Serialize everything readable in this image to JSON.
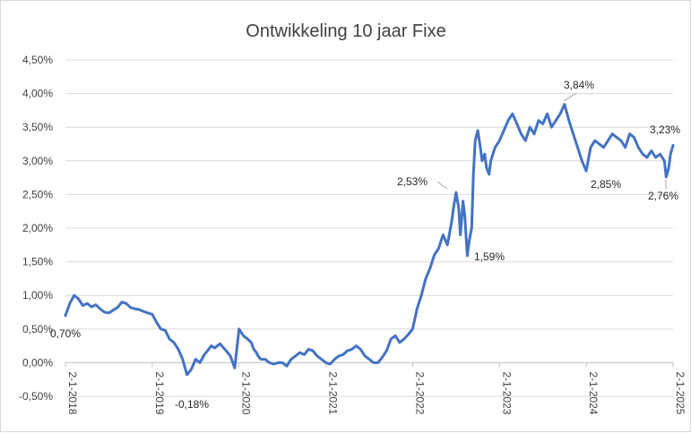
{
  "chart_data": {
    "type": "line",
    "title": "Ontwikkeling 10 jaar Fixe",
    "xlabel": "",
    "ylabel": "",
    "ylim": [
      -0.5,
      4.5
    ],
    "yticks": [
      "-0,50%",
      "0,00%",
      "0,50%",
      "1,00%",
      "1,50%",
      "2,00%",
      "2,50%",
      "3,00%",
      "3,50%",
      "4,00%",
      "4,50%"
    ],
    "xticks": [
      "2-1-2018",
      "2-1-2019",
      "2-1-2020",
      "2-1-2021",
      "2-1-2022",
      "2-1-2023",
      "2-1-2024",
      "2-1-2025"
    ],
    "grid": "horizontal",
    "series_color": "#4472c4",
    "series": [
      {
        "x": [
          2018.0,
          2018.05,
          2018.1,
          2018.15,
          2018.2,
          2018.25,
          2018.3,
          2018.35,
          2018.4,
          2018.45,
          2018.5,
          2018.55,
          2018.6,
          2018.65,
          2018.7,
          2018.75,
          2018.8,
          2018.85,
          2018.9,
          2018.95,
          2019.0,
          2019.05,
          2019.1,
          2019.15,
          2019.2,
          2019.25,
          2019.3,
          2019.35,
          2019.4,
          2019.45,
          2019.5,
          2019.55,
          2019.6,
          2019.65,
          2019.68,
          2019.72,
          2019.78,
          2019.85,
          2019.9,
          2019.95,
          2020.0,
          2020.05,
          2020.1,
          2020.14,
          2020.17,
          2020.2,
          2020.22,
          2020.25,
          2020.3,
          2020.35,
          2020.4,
          2020.45,
          2020.5,
          2020.55,
          2020.6,
          2020.65,
          2020.7,
          2020.75,
          2020.8,
          2020.85,
          2020.9,
          2020.95,
          2021.0,
          2021.05,
          2021.1,
          2021.15,
          2021.2,
          2021.25,
          2021.3,
          2021.35,
          2021.4,
          2021.45,
          2021.5,
          2021.55,
          2021.6,
          2021.65,
          2021.7,
          2021.75,
          2021.8,
          2021.85,
          2021.9,
          2021.95,
          2022.0,
          2022.05,
          2022.1,
          2022.15,
          2022.2,
          2022.25,
          2022.3,
          2022.35,
          2022.4,
          2022.45,
          2022.47,
          2022.5,
          2022.53,
          2022.55,
          2022.58,
          2022.6,
          2022.63,
          2022.65,
          2022.68,
          2022.7,
          2022.72,
          2022.75,
          2022.78,
          2022.8,
          2022.83,
          2022.85,
          2022.88,
          2022.9,
          2022.95,
          2023.0,
          2023.05,
          2023.1,
          2023.15,
          2023.2,
          2023.25,
          2023.3,
          2023.35,
          2023.4,
          2023.45,
          2023.5,
          2023.55,
          2023.6,
          2023.65,
          2023.7,
          2023.75,
          2023.8,
          2023.85,
          2023.9,
          2023.95,
          2024.0,
          2024.05,
          2024.1,
          2024.15,
          2024.2,
          2024.25,
          2024.3,
          2024.35,
          2024.4,
          2024.45,
          2024.5,
          2024.55,
          2024.6,
          2024.65,
          2024.7,
          2024.75,
          2024.8,
          2024.85,
          2024.9,
          2024.92,
          2024.95,
          2024.97,
          2025.0
        ],
        "y": [
          0.7,
          0.88,
          1.0,
          0.95,
          0.85,
          0.88,
          0.83,
          0.86,
          0.8,
          0.75,
          0.74,
          0.78,
          0.82,
          0.9,
          0.88,
          0.82,
          0.8,
          0.79,
          0.76,
          0.74,
          0.72,
          0.6,
          0.5,
          0.48,
          0.35,
          0.3,
          0.2,
          0.05,
          -0.18,
          -0.1,
          0.05,
          0.0,
          0.12,
          0.2,
          0.25,
          0.22,
          0.28,
          0.18,
          0.1,
          -0.08,
          0.5,
          0.4,
          0.35,
          0.3,
          0.2,
          0.15,
          0.1,
          0.05,
          0.05,
          0.0,
          -0.02,
          0.0,
          0.0,
          -0.05,
          0.05,
          0.1,
          0.15,
          0.12,
          0.2,
          0.18,
          0.1,
          0.05,
          0.0,
          -0.02,
          0.05,
          0.1,
          0.12,
          0.18,
          0.2,
          0.25,
          0.2,
          0.1,
          0.05,
          0.0,
          0.0,
          0.08,
          0.18,
          0.35,
          0.4,
          0.3,
          0.35,
          0.42,
          0.5,
          0.8,
          1.0,
          1.25,
          1.4,
          1.6,
          1.7,
          1.9,
          1.75,
          2.1,
          2.3,
          2.53,
          2.3,
          1.9,
          2.4,
          2.2,
          1.59,
          1.8,
          2.0,
          2.8,
          3.3,
          3.45,
          3.2,
          3.0,
          3.1,
          2.9,
          2.8,
          3.0,
          3.2,
          3.3,
          3.45,
          3.6,
          3.7,
          3.55,
          3.4,
          3.3,
          3.5,
          3.4,
          3.6,
          3.55,
          3.7,
          3.5,
          3.6,
          3.7,
          3.84,
          3.6,
          3.4,
          3.2,
          3.0,
          2.85,
          3.2,
          3.3,
          3.25,
          3.2,
          3.3,
          3.4,
          3.35,
          3.3,
          3.2,
          3.4,
          3.35,
          3.2,
          3.1,
          3.05,
          3.15,
          3.05,
          3.1,
          3.0,
          2.76,
          2.9,
          3.1,
          3.23
        ]
      }
    ],
    "annotations": [
      "0,70%",
      "-0,18%",
      "2,53%",
      "1,59%",
      "3,84%",
      "2,85%",
      "3,23%",
      "2,76%"
    ]
  }
}
